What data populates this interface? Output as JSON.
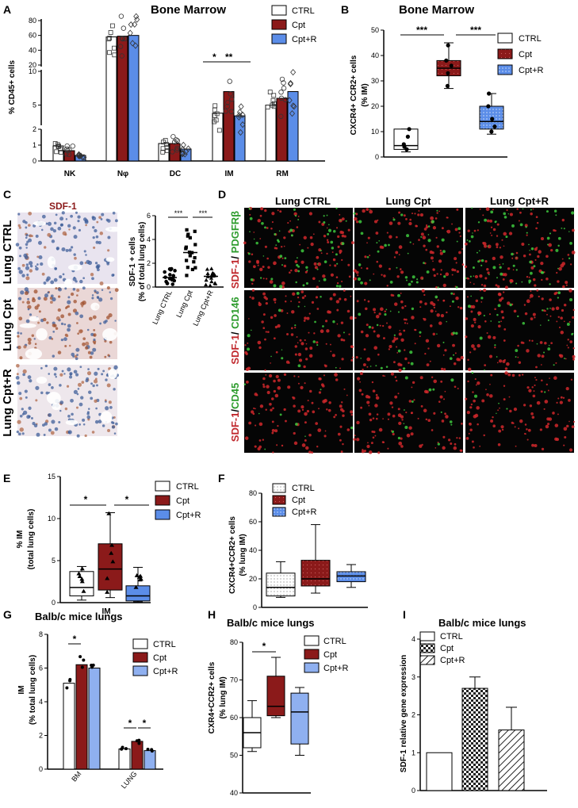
{
  "colors": {
    "ctrl": "#ffffff",
    "cpt": "#8b1a1a",
    "cptr": "#5b8de8",
    "cptr_light": "#9bb8f0",
    "green": "#2e9c2e",
    "red": "#c0282d"
  },
  "panelA": {
    "letter": "A",
    "title": "Bone Marrow",
    "ylabel": "% CD45+ cells",
    "legend": [
      "CTRL",
      "Cpt",
      "Cpt+R"
    ],
    "sig": [
      "*",
      "**"
    ],
    "chart_data": {
      "type": "bar",
      "categories": [
        "NK",
        "Nφ",
        "DC",
        "IM",
        "RM"
      ],
      "series": [
        {
          "name": "CTRL",
          "values": [
            0.95,
            58,
            1.1,
            3.8,
            5.0
          ]
        },
        {
          "name": "Cpt",
          "values": [
            0.65,
            59,
            1.1,
            7.0,
            6.0
          ]
        },
        {
          "name": "Cpt+R",
          "values": [
            0.35,
            60,
            0.75,
            3.4,
            7.0
          ]
        }
      ],
      "yticks": [
        "0",
        "1",
        "2",
        "5",
        "10",
        "20",
        "40",
        "60",
        "80"
      ]
    }
  },
  "panelB": {
    "letter": "B",
    "title": "Bone Marrow",
    "ylabel": "CXCR4+ CCR2+ cells",
    "ylabel2": "(% IM)",
    "legend": [
      "CTRL",
      "Cpt",
      "Cpt+R"
    ],
    "sig": [
      "***",
      "***"
    ],
    "chart_data": {
      "type": "box",
      "ylim": [
        0,
        50
      ],
      "yticks": [
        "0",
        "10",
        "20",
        "30",
        "40",
        "50"
      ],
      "series": [
        {
          "name": "CTRL",
          "min": 2,
          "q1": 3,
          "median": 4.5,
          "q3": 11,
          "max": 11
        },
        {
          "name": "Cpt",
          "min": 27,
          "q1": 32,
          "median": 35,
          "q3": 38,
          "max": 45
        },
        {
          "name": "Cpt+R",
          "min": 9,
          "q1": 11,
          "median": 14,
          "q3": 20,
          "max": 25
        }
      ]
    }
  },
  "panelC": {
    "letter": "C",
    "stain": "SDF-1",
    "rows": [
      "Lung CTRL",
      "Lung Cpt",
      "Lung Cpt+R"
    ],
    "ylabel": "SDF-1 + cells",
    "ylabel2": "(% of total lung cells)",
    "sig": [
      "***",
      "***"
    ],
    "chart_data": {
      "type": "scatter",
      "categories": [
        "Lung CTRL",
        "Lung Cpt",
        "Lung Cpt+R"
      ],
      "yticks": [
        "0",
        "2",
        "4",
        "6"
      ],
      "ylim": [
        0,
        6
      ],
      "means": [
        0.8,
        2.9,
        0.9
      ]
    }
  },
  "panelD": {
    "letter": "D",
    "cols": [
      "Lung CTRL",
      "Lung Cpt",
      "Lung Cpt+R"
    ],
    "rows": [
      {
        "a": "SDF-1",
        "b": "PDGFRβ"
      },
      {
        "a": "SDF-1",
        "b": "CD146"
      },
      {
        "a": "SDF-1",
        "b": "CD45"
      }
    ]
  },
  "panelE": {
    "letter": "E",
    "ylabel": "% IM",
    "ylabel2": "(total lung cells)",
    "xlabel": "IM",
    "legend": [
      "CTRL",
      "Cpt",
      "Cpt+R"
    ],
    "sig": [
      "*",
      "*"
    ],
    "chart_data": {
      "type": "box",
      "ylim": [
        0,
        15
      ],
      "yticks": [
        "0",
        "5",
        "10",
        "15"
      ],
      "series": [
        {
          "name": "CTRL",
          "min": 0.3,
          "q1": 0.8,
          "median": 1.8,
          "q3": 3.7,
          "max": 4.3
        },
        {
          "name": "Cpt",
          "min": 0.6,
          "q1": 1.5,
          "median": 4,
          "q3": 7,
          "max": 10.7
        },
        {
          "name": "Cpt+R",
          "min": 0.1,
          "q1": 0.2,
          "median": 0.8,
          "q3": 2,
          "max": 4.2
        }
      ]
    }
  },
  "panelF": {
    "letter": "F",
    "ylabel": "CXCR4+CCR2+ cells",
    "ylabel2": "(% lung IM)",
    "legend": [
      "CTRL",
      "Cpt",
      "Cpt+R"
    ],
    "chart_data": {
      "type": "box",
      "ylim": [
        0,
        80
      ],
      "yticks": [
        "0",
        "20",
        "40",
        "60",
        "80"
      ],
      "series": [
        {
          "name": "CTRL",
          "min": 7,
          "q1": 8,
          "median": 14,
          "q3": 24,
          "max": 32
        },
        {
          "name": "Cpt",
          "min": 10,
          "q1": 15,
          "median": 20,
          "q3": 33,
          "max": 58
        },
        {
          "name": "Cpt+R",
          "min": 14,
          "q1": 18,
          "median": 22,
          "q3": 25,
          "max": 30
        }
      ]
    }
  },
  "panelG": {
    "letter": "G",
    "title": "Balb/c mice lungs",
    "ylabel": "IM",
    "ylabel2": "(% total lung cells)",
    "legend": [
      "CTRL",
      "Cpt",
      "Cpt+R"
    ],
    "sig": [
      "*",
      "*",
      "*"
    ],
    "chart_data": {
      "type": "bar",
      "categories": [
        "BM",
        "LUNG"
      ],
      "ylim": [
        0,
        8
      ],
      "yticks": [
        "0",
        "2",
        "4",
        "6",
        "8"
      ],
      "series": [
        {
          "name": "CTRL",
          "values": [
            5.1,
            1.2
          ]
        },
        {
          "name": "Cpt",
          "values": [
            6.2,
            1.65
          ]
        },
        {
          "name": "Cpt+R",
          "values": [
            6.0,
            1.1
          ]
        }
      ]
    }
  },
  "panelH": {
    "letter": "H",
    "title": "Balb/c mice lungs",
    "ylabel": "CXR4+CCR2+ cells",
    "ylabel2": "(% lung IM)",
    "legend": [
      "CTRL",
      "Cpt",
      "Cpt+R"
    ],
    "sig": [
      "*"
    ],
    "chart_data": {
      "type": "box",
      "ylim": [
        40,
        80
      ],
      "yticks": [
        "40",
        "50",
        "60",
        "70",
        "80"
      ],
      "series": [
        {
          "name": "CTRL",
          "min": 51,
          "q1": 52,
          "median": 56,
          "q3": 60,
          "max": 64.5
        },
        {
          "name": "Cpt",
          "min": 60,
          "q1": 60.5,
          "median": 63,
          "q3": 71,
          "max": 76
        },
        {
          "name": "Cpt+R",
          "min": 50,
          "q1": 53,
          "median": 61.5,
          "q3": 66.5,
          "max": 68
        }
      ]
    }
  },
  "panelI": {
    "letter": "I",
    "title": "Balb/c mice lungs",
    "ylabel": "SDF-1 relative gene expression",
    "legend": [
      "CTRL",
      "Cpt",
      "Cpt+R"
    ],
    "chart_data": {
      "type": "bar",
      "ylim": [
        0,
        4
      ],
      "yticks": [
        "0",
        "1",
        "2",
        "3",
        "4"
      ],
      "series": [
        {
          "name": "CTRL",
          "value": 1.0,
          "err": 0
        },
        {
          "name": "Cpt",
          "value": 2.7,
          "err": 0.3
        },
        {
          "name": "Cpt+R",
          "value": 1.6,
          "err": 0.6
        }
      ]
    }
  }
}
